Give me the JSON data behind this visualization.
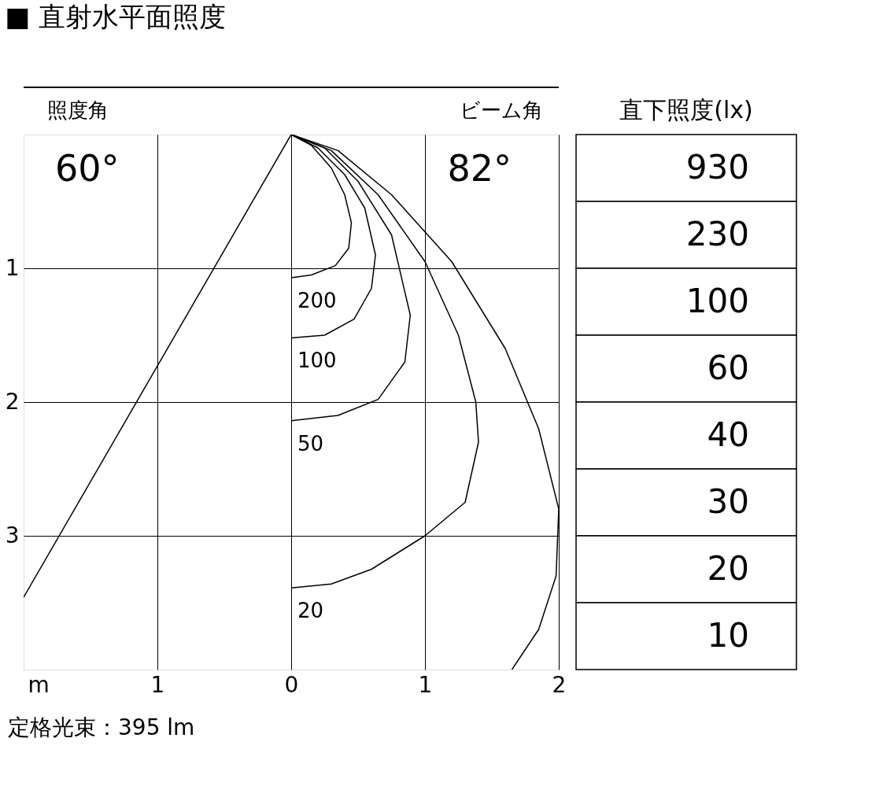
{
  "chart_data": [
    {
      "type": "line",
      "title": "■ 直射水平面照度",
      "xlabel": "m",
      "xlim": [
        -2,
        2
      ],
      "ylim": [
        4,
        0
      ],
      "xticks": [
        {
          "value": -1,
          "label": "1"
        },
        0,
        1,
        2
      ],
      "yticks": [
        1,
        2,
        3
      ],
      "grid": true,
      "annotations": [
        "照度角",
        "60°",
        "ビーム角",
        "82°",
        "定格光束：395 lm"
      ],
      "series": [
        {
          "name": "200",
          "color": "#000000",
          "x": [
            0,
            0.15,
            0.3,
            0.4,
            0.45,
            0.43,
            0.33,
            0.15,
            0
          ],
          "values": [
            0,
            0.08,
            0.25,
            0.45,
            0.66,
            0.85,
            0.98,
            1.05,
            1.07
          ]
        },
        {
          "name": "100",
          "color": "#000000",
          "x": [
            0,
            0.2,
            0.4,
            0.55,
            0.63,
            0.6,
            0.47,
            0.25,
            0
          ],
          "values": [
            0,
            0.1,
            0.3,
            0.55,
            0.9,
            1.15,
            1.38,
            1.5,
            1.52
          ]
        },
        {
          "name": "50",
          "color": "#000000",
          "x": [
            0,
            0.25,
            0.5,
            0.75,
            0.89,
            0.85,
            0.65,
            0.35,
            0
          ],
          "values": [
            0,
            0.1,
            0.35,
            0.75,
            1.35,
            1.7,
            1.98,
            2.1,
            2.14
          ]
        },
        {
          "name": "20",
          "color": "#000000",
          "x": [
            0,
            0.3,
            0.65,
            1.0,
            1.25,
            1.38,
            1.4,
            1.3,
            1.0,
            0.6,
            0.3,
            0
          ],
          "values": [
            0,
            0.12,
            0.45,
            0.95,
            1.5,
            2.0,
            2.3,
            2.75,
            3.0,
            3.25,
            3.36,
            3.39
          ]
        },
        {
          "color": "#000000",
          "x": [
            0,
            0.35,
            0.75,
            1.2,
            1.6,
            1.85,
            2.0,
            1.98,
            1.85,
            1.65
          ],
          "values": [
            0,
            0.12,
            0.45,
            0.95,
            1.6,
            2.2,
            2.8,
            3.3,
            3.7,
            4.0
          ]
        },
        {
          "color": "#000000",
          "x": [
            0,
            -2
          ],
          "values": [
            0,
            3.46
          ]
        }
      ]
    },
    {
      "type": "other",
      "title": "直下照度(lx)",
      "values": [
        930,
        230,
        100,
        60,
        40,
        30,
        20,
        10
      ],
      "data_labels": true
    }
  ]
}
